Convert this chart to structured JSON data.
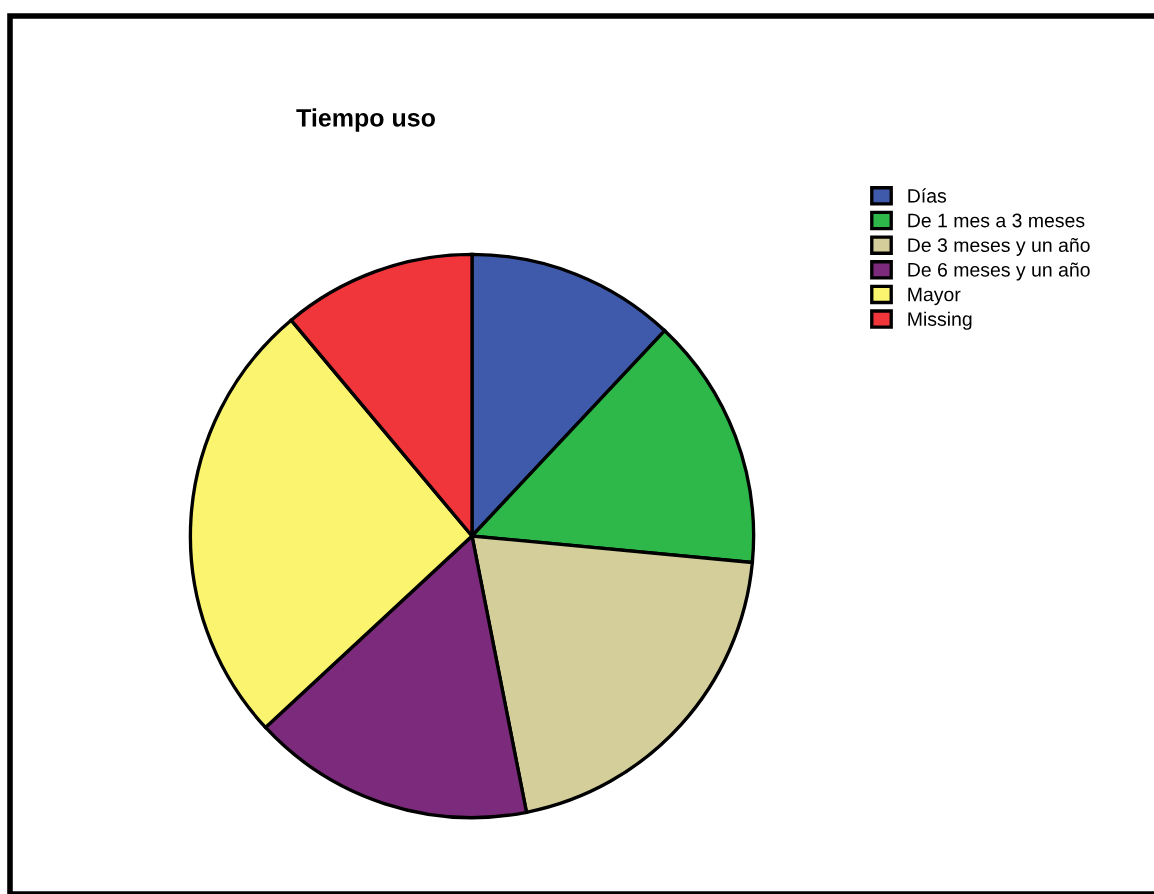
{
  "chart_data": {
    "type": "pie",
    "title": "Tiempo uso",
    "categories": [
      "Días",
      "De 1 mes a 3 meses",
      "De 3 meses y un año",
      "De 6 meses y un año",
      "Mayor",
      "Missing"
    ],
    "values": [
      12.0,
      14.5,
      20.4,
      16.2,
      25.8,
      11.1
    ],
    "colors": [
      "#3f5aaa",
      "#2fb84a",
      "#d4cf9a",
      "#7b2a7c",
      "#fbf46e",
      "#f0353b"
    ],
    "legend": "right"
  }
}
